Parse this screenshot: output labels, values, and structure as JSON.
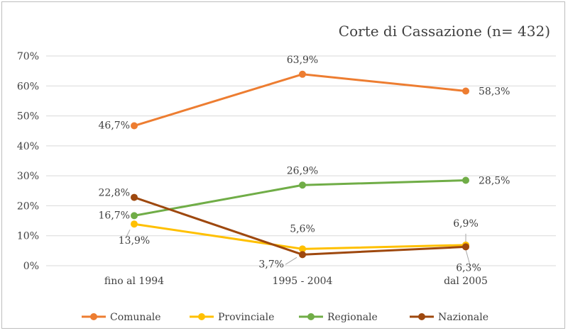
{
  "chart_data": {
    "type": "line",
    "title": "Corte di Cassazione (n= 432)",
    "xlabel": "",
    "ylabel": "",
    "categories": [
      "fino al 1994",
      "1995 - 2004",
      "dal 2005"
    ],
    "ylim": [
      0,
      70
    ],
    "y_ticks": [
      "0%",
      "10%",
      "20%",
      "30%",
      "40%",
      "50%",
      "60%",
      "70%"
    ],
    "grid": "horizontal",
    "legend_position": "bottom",
    "series": [
      {
        "name": "Comunale",
        "color": "#ED7D31",
        "values": [
          46.7,
          63.9,
          58.3
        ],
        "labels": [
          "46,7%",
          "63,9%",
          "58,3%"
        ]
      },
      {
        "name": "Provinciale",
        "color": "#FFC000",
        "values": [
          13.9,
          5.6,
          6.9
        ],
        "labels": [
          "13,9%",
          "5,6%",
          "6,9%"
        ]
      },
      {
        "name": "Regionale",
        "color": "#70AD47",
        "values": [
          16.7,
          26.9,
          28.5
        ],
        "labels": [
          "16,7%",
          "26,9%",
          "28,5%"
        ]
      },
      {
        "name": "Nazionale",
        "color": "#9E480E",
        "values": [
          22.8,
          3.7,
          6.3
        ],
        "labels": [
          "22,8%",
          "3,7%",
          "6,3%"
        ]
      }
    ]
  }
}
